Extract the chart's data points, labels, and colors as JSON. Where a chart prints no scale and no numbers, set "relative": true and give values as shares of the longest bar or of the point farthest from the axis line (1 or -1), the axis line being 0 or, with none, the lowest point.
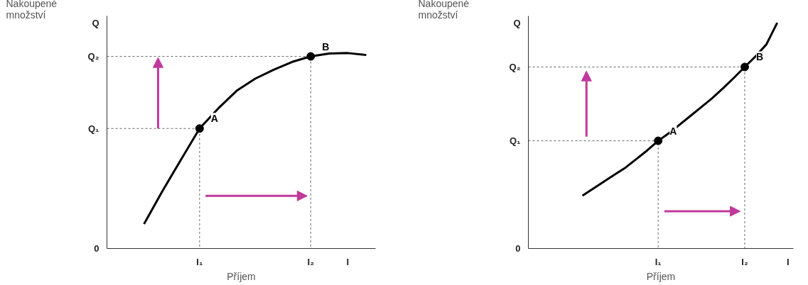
{
  "chart_data": [
    {
      "type": "line",
      "relative": true,
      "ylabel": "Nakoupené množství",
      "xlabel": "Příjem",
      "categories": [
        null,
        null,
        null,
        null,
        null,
        "I₁",
        null,
        null,
        null,
        null,
        null,
        "I₂",
        null,
        "I",
        null
      ],
      "series": [
        {
          "color": "#000000",
          "values": [
            null,
            null,
            0.125,
            0.295,
            0.455,
            0.614,
            0.716,
            0.807,
            0.869,
            0.915,
            0.955,
            0.983,
            0.998,
            1,
            0.99
          ]
        },
        {
          "type": "scatter",
          "marker": "circle",
          "color": "#000000",
          "values": [
            null,
            null,
            null,
            null,
            null,
            0.614,
            null,
            null,
            null,
            null,
            null,
            0.983,
            null,
            null,
            null
          ]
        }
      ],
      "annotations": [
        {
          "text": "A",
          "x": "I₁",
          "y": 0.614
        },
        {
          "text": "B",
          "x": "I₂",
          "y": 0.983
        },
        "0",
        "Q₁",
        "Q₂",
        "Q"
      ]
    },
    {
      "type": "line",
      "relative": true,
      "ylabel": "Nakoupené množství",
      "xlabel": "Příjem",
      "categories": [
        null,
        null,
        null,
        null,
        null,
        null,
        null,
        null,
        null,
        null,
        null,
        null,
        "I₁",
        null,
        null,
        null,
        null,
        null,
        null,
        null,
        "I₂",
        null,
        null,
        null,
        "I"
      ],
      "series": [
        {
          "color": "#000000",
          "values": [
            null,
            null,
            null,
            null,
            null,
            0.234,
            0.265,
            0.297,
            0.328,
            0.359,
            0.397,
            0.435,
            0.477,
            0.511,
            0.549,
            0.588,
            0.627,
            0.666,
            0.71,
            0.756,
            0.804,
            0.851,
            0.904,
            1,
            null
          ]
        },
        {
          "type": "scatter",
          "marker": "circle",
          "color": "#000000",
          "values": [
            null,
            null,
            null,
            null,
            null,
            null,
            null,
            null,
            null,
            null,
            null,
            null,
            0.477,
            null,
            null,
            null,
            null,
            null,
            null,
            null,
            0.804,
            null,
            null,
            null,
            null
          ]
        }
      ],
      "annotations": [
        {
          "text": "A",
          "x": "I₁",
          "y": 0.477
        },
        {
          "text": "B",
          "x": "I₂",
          "y": 0.804
        },
        "0",
        "Q₁",
        "Q₂",
        "Q"
      ]
    }
  ]
}
